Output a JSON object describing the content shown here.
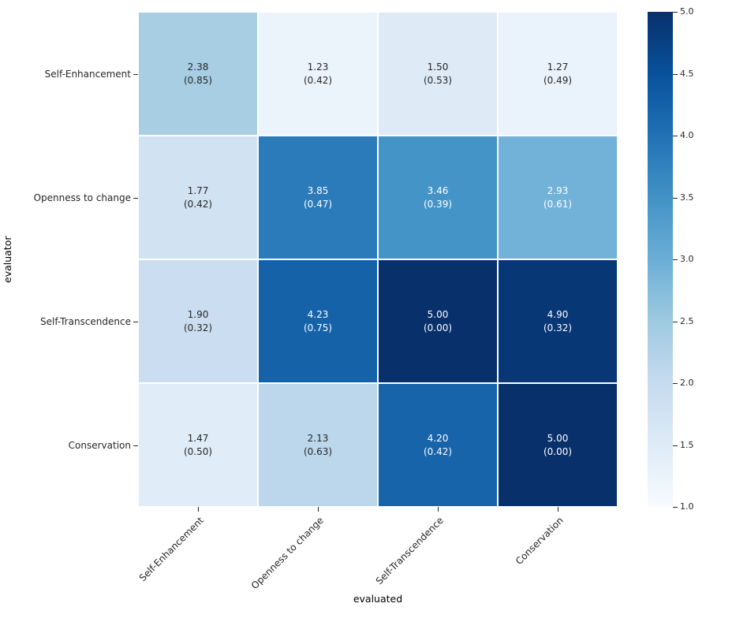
{
  "chart_data": {
    "type": "heatmap",
    "xlabel": "evaluated",
    "ylabel": "evaluator",
    "x_categories": [
      "Self-Enhancement",
      "Openness to change",
      "Self-Transcendence",
      "Conservation"
    ],
    "y_categories": [
      "Self-Enhancement",
      "Openness to change",
      "Self-Transcendence",
      "Conservation"
    ],
    "annotation_format": "mean\n(sd)",
    "values_mean": [
      [
        2.38,
        1.23,
        1.5,
        1.27
      ],
      [
        1.77,
        3.85,
        3.46,
        2.93
      ],
      [
        1.9,
        4.23,
        5.0,
        4.9
      ],
      [
        1.47,
        2.13,
        4.2,
        5.0
      ]
    ],
    "values_sd": [
      [
        0.85,
        0.42,
        0.53,
        0.49
      ],
      [
        0.42,
        0.47,
        0.39,
        0.61
      ],
      [
        0.32,
        0.75,
        0.0,
        0.32
      ],
      [
        0.5,
        0.63,
        0.42,
        0.0
      ]
    ],
    "vmin": 1.0,
    "vmax": 5.0,
    "colormap": "Blues",
    "colormap_stops": [
      "#f7fbff",
      "#deebf7",
      "#c6dbef",
      "#9ecae1",
      "#6baed6",
      "#4292c6",
      "#2171b5",
      "#08519c",
      "#08306b"
    ],
    "colorbar_tick_labels": [
      "5.0",
      "4.5",
      "4.0",
      "3.5",
      "3.0",
      "2.5",
      "2.0",
      "1.5",
      "1.0"
    ],
    "annotation_text_on_dark": "#ffffff",
    "annotation_text_on_light": "#262626",
    "grid_line_color": "#ffffff",
    "legend_position": "right-colorbar",
    "gridlines": false
  }
}
